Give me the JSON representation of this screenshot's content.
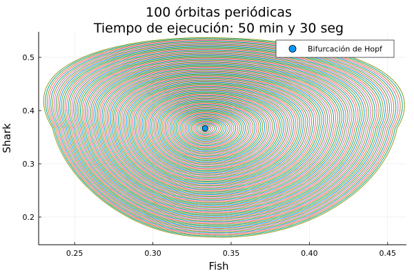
{
  "chart_data": {
    "type": "line",
    "title_lines": [
      "100 órbitas periódicas",
      "Tiempo de ejecución: 50 min y 30 seg"
    ],
    "xlabel": "Fish",
    "ylabel": "Shark",
    "xlim": [
      0.227,
      0.462
    ],
    "ylim": [
      0.148,
      0.548
    ],
    "xticks": [
      0.25,
      0.3,
      0.35,
      0.4,
      0.45
    ],
    "xtick_labels": [
      "0.25",
      "0.30",
      "0.35",
      "0.40",
      "0.45"
    ],
    "yticks": [
      0.2,
      0.3,
      0.4,
      0.5
    ],
    "ytick_labels": [
      "0.2",
      "0.3",
      "0.4",
      "0.5"
    ],
    "grid": true,
    "legend_position": "top-right",
    "orbits": {
      "count": 100,
      "center": [
        0.3333,
        0.3667
      ],
      "outer_bounds": {
        "x": [
          0.236,
          0.456
        ],
        "y": [
          0.163,
          0.537
        ]
      },
      "colors": [
        "#009AFA",
        "#E36F47",
        "#3EA44E",
        "#C371D2",
        "#AC8E18",
        "#00A9AD",
        "#ED5E93",
        "#C68225",
        "#00A98D",
        "#8E971E"
      ]
    },
    "points": [
      {
        "name": "Bifurcación de Hopf",
        "x": 0.3333,
        "y": 0.3667,
        "color": "#009AFA"
      }
    ]
  }
}
